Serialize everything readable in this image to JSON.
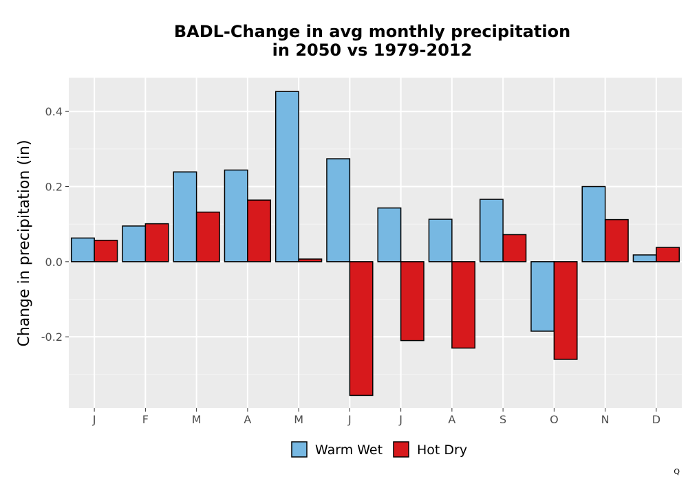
{
  "chart_data": {
    "type": "bar",
    "title_lines": [
      "BADL-Change in avg monthly precipitation",
      "in 2050 vs 1979-2012"
    ],
    "xlabel": "",
    "ylabel": "Change in precipitation (in)",
    "categories": [
      "J",
      "F",
      "M",
      "A",
      "M",
      "J",
      "J",
      "A",
      "S",
      "O",
      "N",
      "D"
    ],
    "series": [
      {
        "name": "Warm Wet",
        "color": "#77b8e2",
        "values": [
          0.063,
          0.095,
          0.239,
          0.244,
          0.453,
          0.274,
          0.143,
          0.113,
          0.166,
          -0.185,
          0.2,
          0.018
        ]
      },
      {
        "name": "Hot Dry",
        "color": "#d7191c",
        "values": [
          0.057,
          0.101,
          0.132,
          0.164,
          0.007,
          -0.356,
          -0.21,
          -0.23,
          0.072,
          -0.26,
          0.112,
          0.038
        ]
      }
    ],
    "ylim": [
      -0.39,
      0.49
    ],
    "yticks": [
      -0.2,
      0.0,
      0.2,
      0.4
    ],
    "ytick_labels": [
      "-0.2",
      "0.0",
      "0.2",
      "0.4"
    ],
    "grid": true,
    "legend_position": "bottom",
    "caption": "Q"
  }
}
